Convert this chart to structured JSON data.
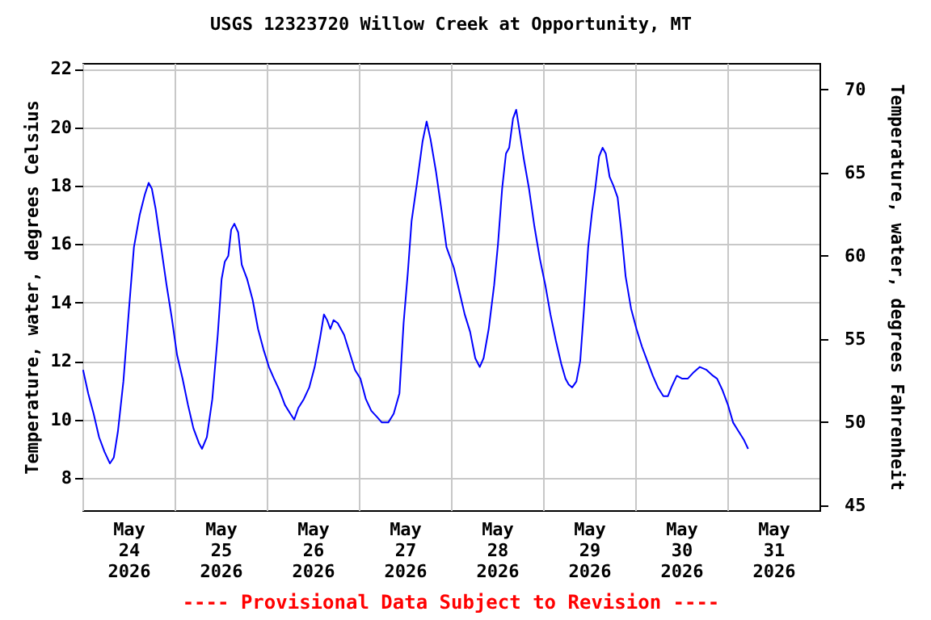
{
  "chart_data": {
    "type": "line",
    "title": "USGS 12323720 Willow Creek at Opportunity, MT",
    "ylabel": "Temperature, water, degrees Celsius",
    "y2label": "Temperature, water, degrees Fahrenheit",
    "annotations": [
      "---- Provisional Data Subject to Revision ----"
    ],
    "xlim": [
      "2026-05-24T00:00",
      "2026-06-01T00:00"
    ],
    "xticks": [
      {
        "value": "2026-05-24T00:00",
        "label": null
      },
      {
        "value": "2026-05-24T12:00",
        "label": "May\n24\n2026"
      },
      {
        "value": "2026-05-25T00:00",
        "label": null
      },
      {
        "value": "2026-05-25T12:00",
        "label": "May\n25\n2026"
      },
      {
        "value": "2026-05-26T00:00",
        "label": null
      },
      {
        "value": "2026-05-26T12:00",
        "label": "May\n26\n2026"
      },
      {
        "value": "2026-05-27T00:00",
        "label": null
      },
      {
        "value": "2026-05-27T12:00",
        "label": "May\n27\n2026"
      },
      {
        "value": "2026-05-28T00:00",
        "label": null
      },
      {
        "value": "2026-05-28T12:00",
        "label": "May\n28\n2026"
      },
      {
        "value": "2026-05-29T00:00",
        "label": null
      },
      {
        "value": "2026-05-29T12:00",
        "label": "May\n29\n2026"
      },
      {
        "value": "2026-05-30T00:00",
        "label": null
      },
      {
        "value": "2026-05-30T12:00",
        "label": "May\n30\n2026"
      },
      {
        "value": "2026-05-31T00:00",
        "label": null
      },
      {
        "value": "2026-05-31T12:00",
        "label": "May\n31\n2026"
      },
      {
        "value": "2026-06-01T00:00",
        "label": null
      }
    ],
    "ylim": [
      6.9,
      22.2
    ],
    "yticks": [
      8,
      10,
      12,
      14,
      16,
      18,
      20,
      22
    ],
    "y2lim": [
      44.7,
      71.6
    ],
    "y2ticks": [
      45,
      50,
      55,
      60,
      65,
      70
    ],
    "grid": true,
    "series": [
      {
        "color": "#0000ff",
        "x": [
          "2026-05-24T00:10",
          "2026-05-24T01:30",
          "2026-05-24T02:55",
          "2026-05-24T04:20",
          "2026-05-24T05:45",
          "2026-05-24T07:10",
          "2026-05-24T08:10",
          "2026-05-24T09:15",
          "2026-05-24T10:40",
          "2026-05-24T12:05",
          "2026-05-24T13:25",
          "2026-05-24T14:55",
          "2026-05-24T16:15",
          "2026-05-24T17:15",
          "2026-05-24T18:05",
          "2026-05-24T19:05",
          "2026-05-24T20:30",
          "2026-05-24T21:55",
          "2026-05-24T23:15",
          "2026-05-25T00:40",
          "2026-05-25T02:05",
          "2026-05-25T03:30",
          "2026-05-25T04:55",
          "2026-05-25T06:20",
          "2026-05-25T07:10",
          "2026-05-25T08:25",
          "2026-05-25T09:50",
          "2026-05-25T11:15",
          "2026-05-25T12:15",
          "2026-05-25T13:05",
          "2026-05-25T14:00",
          "2026-05-25T14:45",
          "2026-05-25T15:35",
          "2026-05-25T16:35",
          "2026-05-25T17:30",
          "2026-05-25T18:55",
          "2026-05-25T20:20",
          "2026-05-25T21:45",
          "2026-05-25T23:10",
          "2026-05-26T00:35",
          "2026-05-26T01:55",
          "2026-05-26T03:20",
          "2026-05-26T04:45",
          "2026-05-26T06:10",
          "2026-05-26T07:10",
          "2026-05-26T08:15",
          "2026-05-26T09:40",
          "2026-05-26T11:05",
          "2026-05-26T12:30",
          "2026-05-26T13:55",
          "2026-05-26T14:55",
          "2026-05-26T15:45",
          "2026-05-26T16:35",
          "2026-05-26T17:25",
          "2026-05-26T18:30",
          "2026-05-26T20:10",
          "2026-05-26T21:35",
          "2026-05-26T23:00",
          "2026-05-27T00:25",
          "2026-05-27T01:50",
          "2026-05-27T03:15",
          "2026-05-27T04:40",
          "2026-05-27T06:00",
          "2026-05-27T07:40",
          "2026-05-27T09:05",
          "2026-05-27T10:35",
          "2026-05-27T11:40",
          "2026-05-27T12:45",
          "2026-05-27T13:45",
          "2026-05-27T15:10",
          "2026-05-27T16:35",
          "2026-05-27T17:40",
          "2026-05-27T18:40",
          "2026-05-27T20:05",
          "2026-05-27T21:30",
          "2026-05-27T22:50",
          "2026-05-28T00:45",
          "2026-05-28T02:10",
          "2026-05-28T03:35",
          "2026-05-28T05:00",
          "2026-05-28T06:20",
          "2026-05-28T07:30",
          "2026-05-28T08:30",
          "2026-05-28T09:50",
          "2026-05-28T11:15",
          "2026-05-28T12:15",
          "2026-05-28T13:20",
          "2026-05-28T14:20",
          "2026-05-28T15:10",
          "2026-05-28T16:10",
          "2026-05-28T17:00",
          "2026-05-28T17:50",
          "2026-05-28T19:00",
          "2026-05-28T20:20",
          "2026-05-28T21:45",
          "2026-05-28T23:10",
          "2026-05-29T00:35",
          "2026-05-29T01:55",
          "2026-05-29T03:20",
          "2026-05-29T04:45",
          "2026-05-29T05:50",
          "2026-05-29T06:40",
          "2026-05-29T07:35",
          "2026-05-29T08:40",
          "2026-05-29T09:40",
          "2026-05-29T10:40",
          "2026-05-29T11:45",
          "2026-05-29T12:45",
          "2026-05-29T13:35",
          "2026-05-29T14:35",
          "2026-05-29T15:30",
          "2026-05-29T16:20",
          "2026-05-29T17:20",
          "2026-05-29T18:20",
          "2026-05-29T19:25",
          "2026-05-29T20:25",
          "2026-05-29T21:30",
          "2026-05-29T22:55",
          "2026-05-30T00:20",
          "2026-05-30T01:45",
          "2026-05-30T03:10",
          "2026-05-30T04:35",
          "2026-05-30T05:55",
          "2026-05-30T07:20",
          "2026-05-30T08:30",
          "2026-05-30T09:25",
          "2026-05-30T10:50",
          "2026-05-30T12:15",
          "2026-05-30T13:40",
          "2026-05-30T15:05",
          "2026-05-30T16:50",
          "2026-05-30T18:35",
          "2026-05-30T20:15",
          "2026-05-30T21:20",
          "2026-05-30T22:45",
          "2026-05-31T00:10",
          "2026-05-31T01:30",
          "2026-05-31T02:55",
          "2026-05-31T04:20",
          "2026-05-31T05:25"
        ],
        "values": [
          11.7,
          10.9,
          10.2,
          9.4,
          8.9,
          8.5,
          8.7,
          9.6,
          11.3,
          13.7,
          15.9,
          17.0,
          17.7,
          18.1,
          17.9,
          17.2,
          15.9,
          14.6,
          13.5,
          12.2,
          11.4,
          10.5,
          9.7,
          9.2,
          9.0,
          9.4,
          10.7,
          12.9,
          14.8,
          15.4,
          15.6,
          16.5,
          16.7,
          16.4,
          15.3,
          14.8,
          14.1,
          13.1,
          12.4,
          11.8,
          11.4,
          11.0,
          10.5,
          10.2,
          10.0,
          10.4,
          10.7,
          11.1,
          11.8,
          12.8,
          13.6,
          13.4,
          13.1,
          13.4,
          13.3,
          12.9,
          12.3,
          11.7,
          11.4,
          10.7,
          10.3,
          10.1,
          9.9,
          9.9,
          10.2,
          10.9,
          13.3,
          15.0,
          16.8,
          18.1,
          19.5,
          20.2,
          19.6,
          18.5,
          17.2,
          15.9,
          15.2,
          14.4,
          13.6,
          13.0,
          12.1,
          11.8,
          12.1,
          13.1,
          14.6,
          16.0,
          17.9,
          19.1,
          19.3,
          20.3,
          20.6,
          19.9,
          18.9,
          17.9,
          16.6,
          15.5,
          14.6,
          13.6,
          12.7,
          11.9,
          11.4,
          11.2,
          11.1,
          11.3,
          12.0,
          13.8,
          15.9,
          17.1,
          17.9,
          19.0,
          19.3,
          19.1,
          18.3,
          18.0,
          17.6,
          16.4,
          14.9,
          13.8,
          13.1,
          12.5,
          12.0,
          11.5,
          11.1,
          10.8,
          10.8,
          11.1,
          11.5,
          11.4,
          11.4,
          11.6,
          11.8,
          11.7,
          11.5,
          11.4,
          11.0,
          10.5,
          9.9,
          9.6,
          9.3,
          9.0
        ]
      }
    ]
  }
}
